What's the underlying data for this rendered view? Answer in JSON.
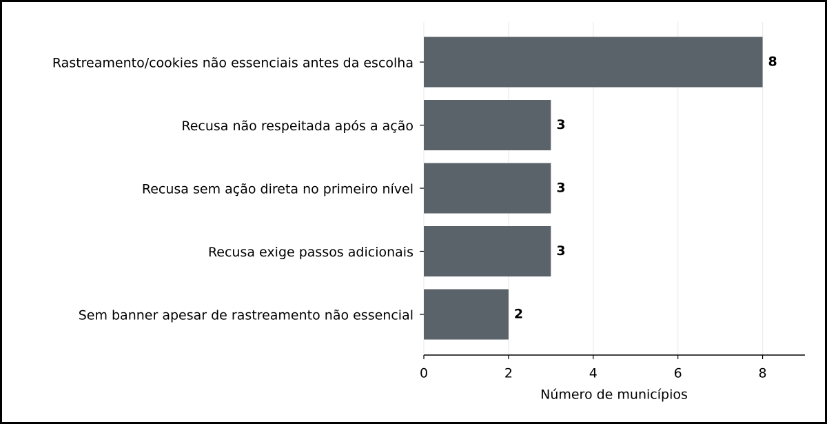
{
  "chart_data": {
    "type": "bar",
    "orientation": "horizontal",
    "x_label": "Número de municípios",
    "categories": [
      "Rastreamento/cookies não essenciais antes da escolha",
      "Recusa não respeitada após a ação",
      "Recusa sem ação direta no primeiro nível",
      "Recusa exige passos adicionais",
      "Sem banner apesar de rastreamento não essencial"
    ],
    "values": [
      8,
      3,
      3,
      3,
      2
    ],
    "color": "#5a626a",
    "xlim": [
      0,
      9
    ],
    "xticks": [
      0,
      2,
      4,
      6,
      8
    ],
    "grid": true
  }
}
